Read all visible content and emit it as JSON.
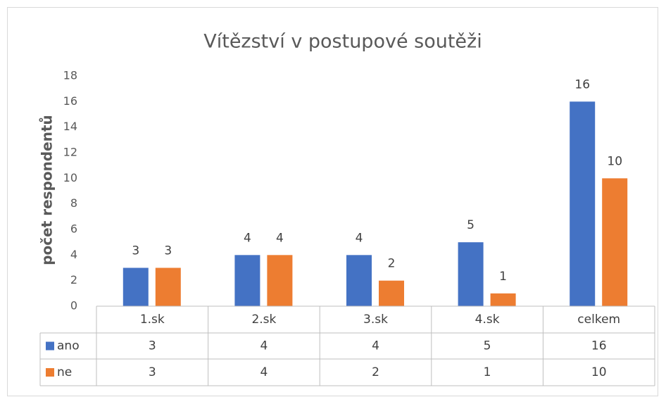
{
  "chart_data": {
    "type": "bar",
    "title": "Vítězství v postupové soutěži",
    "y_label": "počet respondentů",
    "categories": [
      "1.sk",
      "2.sk",
      "3.sk",
      "4.sk",
      "celkem"
    ],
    "series": [
      {
        "name": "ano",
        "color": "#4472c4",
        "values": [
          3,
          4,
          4,
          5,
          16
        ]
      },
      {
        "name": "ne",
        "color": "#ed7d31",
        "values": [
          3,
          4,
          2,
          1,
          10
        ]
      }
    ],
    "ylim": [
      0,
      18
    ],
    "yticks": [
      0,
      2,
      4,
      6,
      8,
      10,
      12,
      14,
      16,
      18
    ],
    "grid": false,
    "data_labels": true,
    "data_table": true
  }
}
